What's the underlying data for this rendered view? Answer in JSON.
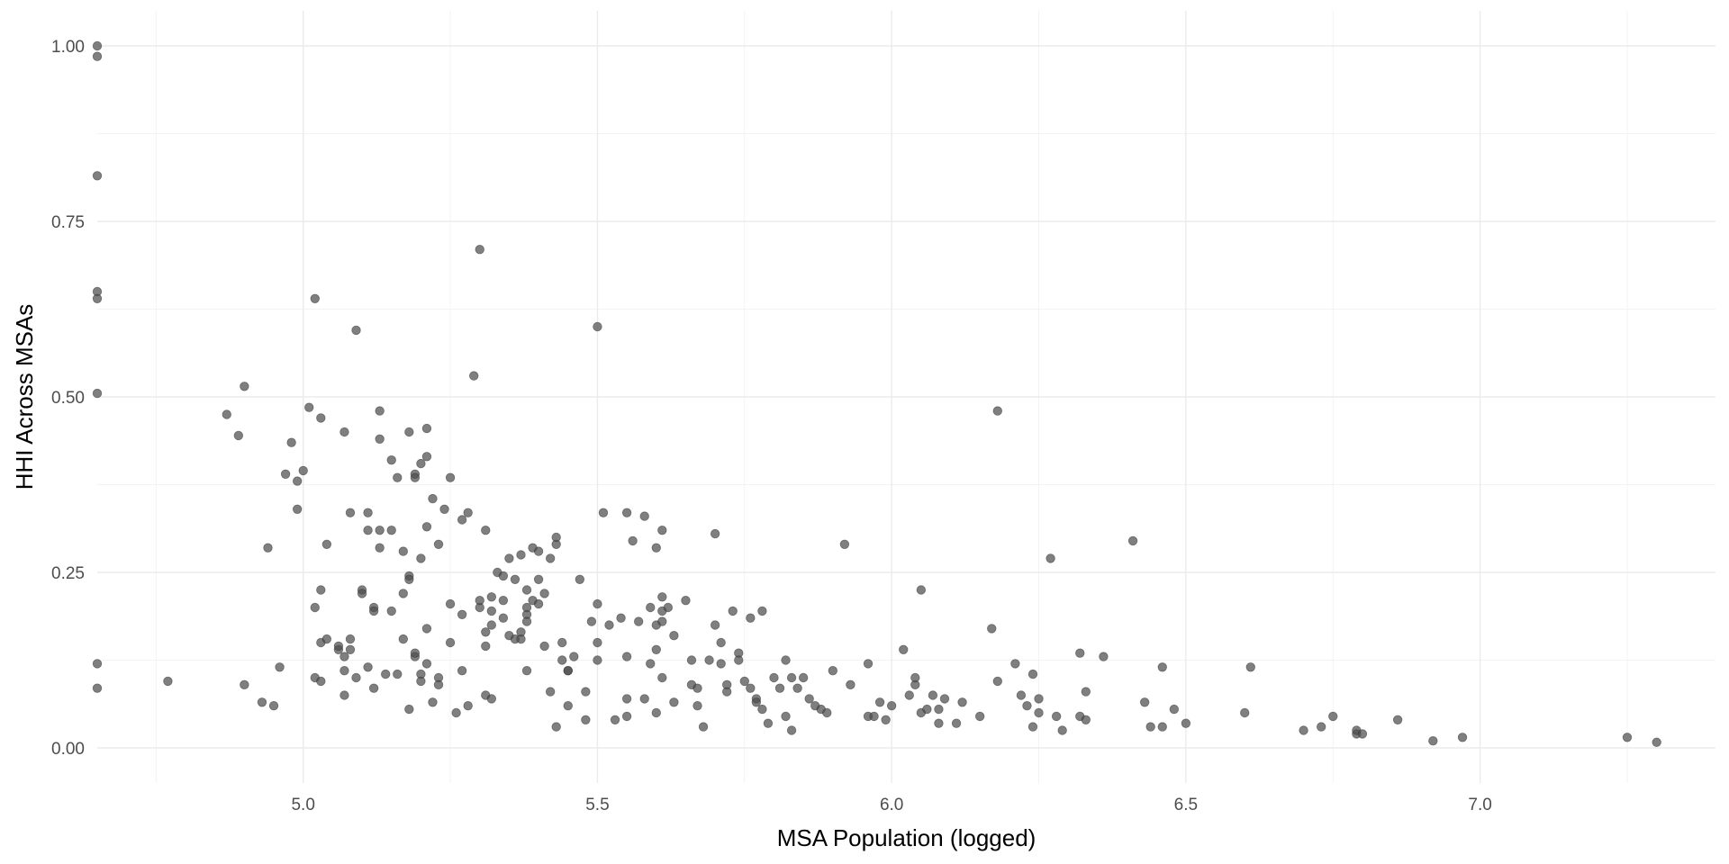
{
  "colors": {
    "background": "#ffffff",
    "grid": "#ebebeb",
    "point": "#4d4d4d",
    "tick_text": "#4d4d4d",
    "title_text": "#000000"
  },
  "chart_data": {
    "type": "scatter",
    "title": "",
    "xlabel": "MSA Population (logged)",
    "ylabel": "HHI Across MSAs",
    "xlim": [
      4.65,
      7.4
    ],
    "ylim": [
      -0.05,
      1.05
    ],
    "x_ticks": [
      5.0,
      5.5,
      6.0,
      6.5,
      7.0
    ],
    "x_tick_labels": [
      "5.0",
      "5.5",
      "6.0",
      "6.5",
      "7.0"
    ],
    "y_ticks": [
      0.0,
      0.25,
      0.5,
      0.75,
      1.0
    ],
    "y_tick_labels": [
      "0.00",
      "0.25",
      "0.50",
      "0.75",
      "1.00"
    ],
    "grid": true,
    "legend": "none",
    "points": [
      [
        4.65,
        1.0
      ],
      [
        4.65,
        0.985
      ],
      [
        4.65,
        0.815
      ],
      [
        4.65,
        0.65
      ],
      [
        4.65,
        0.64
      ],
      [
        4.65,
        0.505
      ],
      [
        4.65,
        0.12
      ],
      [
        4.65,
        0.085
      ],
      [
        4.77,
        0.095
      ],
      [
        4.87,
        0.475
      ],
      [
        4.89,
        0.445
      ],
      [
        4.9,
        0.515
      ],
      [
        4.9,
        0.09
      ],
      [
        4.93,
        0.065
      ],
      [
        4.94,
        0.285
      ],
      [
        4.95,
        0.06
      ],
      [
        4.96,
        0.115
      ],
      [
        4.97,
        0.39
      ],
      [
        4.98,
        0.435
      ],
      [
        4.99,
        0.38
      ],
      [
        4.99,
        0.34
      ],
      [
        5.0,
        0.395
      ],
      [
        5.01,
        0.485
      ],
      [
        5.02,
        0.64
      ],
      [
        5.02,
        0.2
      ],
      [
        5.02,
        0.1
      ],
      [
        5.03,
        0.47
      ],
      [
        5.03,
        0.095
      ],
      [
        5.03,
        0.225
      ],
      [
        5.03,
        0.15
      ],
      [
        5.04,
        0.155
      ],
      [
        5.04,
        0.29
      ],
      [
        5.06,
        0.14
      ],
      [
        5.06,
        0.145
      ],
      [
        5.07,
        0.45
      ],
      [
        5.07,
        0.13
      ],
      [
        5.07,
        0.11
      ],
      [
        5.07,
        0.075
      ],
      [
        5.08,
        0.335
      ],
      [
        5.08,
        0.155
      ],
      [
        5.08,
        0.14
      ],
      [
        5.09,
        0.595
      ],
      [
        5.09,
        0.1
      ],
      [
        5.1,
        0.225
      ],
      [
        5.1,
        0.22
      ],
      [
        5.11,
        0.31
      ],
      [
        5.11,
        0.115
      ],
      [
        5.11,
        0.335
      ],
      [
        5.12,
        0.2
      ],
      [
        5.12,
        0.195
      ],
      [
        5.12,
        0.085
      ],
      [
        5.13,
        0.48
      ],
      [
        5.13,
        0.44
      ],
      [
        5.13,
        0.31
      ],
      [
        5.13,
        0.285
      ],
      [
        5.14,
        0.105
      ],
      [
        5.15,
        0.41
      ],
      [
        5.15,
        0.195
      ],
      [
        5.15,
        0.31
      ],
      [
        5.16,
        0.385
      ],
      [
        5.16,
        0.105
      ],
      [
        5.17,
        0.28
      ],
      [
        5.17,
        0.22
      ],
      [
        5.17,
        0.155
      ],
      [
        5.18,
        0.45
      ],
      [
        5.18,
        0.245
      ],
      [
        5.18,
        0.24
      ],
      [
        5.18,
        0.055
      ],
      [
        5.19,
        0.39
      ],
      [
        5.19,
        0.385
      ],
      [
        5.19,
        0.13
      ],
      [
        5.19,
        0.135
      ],
      [
        5.2,
        0.405
      ],
      [
        5.2,
        0.27
      ],
      [
        5.2,
        0.105
      ],
      [
        5.2,
        0.095
      ],
      [
        5.21,
        0.455
      ],
      [
        5.21,
        0.415
      ],
      [
        5.21,
        0.315
      ],
      [
        5.21,
        0.17
      ],
      [
        5.21,
        0.12
      ],
      [
        5.22,
        0.355
      ],
      [
        5.22,
        0.065
      ],
      [
        5.23,
        0.29
      ],
      [
        5.23,
        0.1
      ],
      [
        5.23,
        0.09
      ],
      [
        5.24,
        0.34
      ],
      [
        5.25,
        0.385
      ],
      [
        5.25,
        0.205
      ],
      [
        5.25,
        0.15
      ],
      [
        5.26,
        0.05
      ],
      [
        5.27,
        0.11
      ],
      [
        5.27,
        0.19
      ],
      [
        5.27,
        0.325
      ],
      [
        5.28,
        0.335
      ],
      [
        5.28,
        0.06
      ],
      [
        5.29,
        0.53
      ],
      [
        5.3,
        0.71
      ],
      [
        5.3,
        0.2
      ],
      [
        5.3,
        0.21
      ],
      [
        5.31,
        0.31
      ],
      [
        5.31,
        0.145
      ],
      [
        5.31,
        0.165
      ],
      [
        5.31,
        0.075
      ],
      [
        5.32,
        0.215
      ],
      [
        5.32,
        0.195
      ],
      [
        5.32,
        0.175
      ],
      [
        5.32,
        0.07
      ],
      [
        5.33,
        0.25
      ],
      [
        5.34,
        0.245
      ],
      [
        5.34,
        0.185
      ],
      [
        5.34,
        0.21
      ],
      [
        5.35,
        0.27
      ],
      [
        5.35,
        0.16
      ],
      [
        5.36,
        0.24
      ],
      [
        5.36,
        0.155
      ],
      [
        5.37,
        0.275
      ],
      [
        5.37,
        0.155
      ],
      [
        5.37,
        0.165
      ],
      [
        5.38,
        0.225
      ],
      [
        5.38,
        0.19
      ],
      [
        5.38,
        0.2
      ],
      [
        5.38,
        0.18
      ],
      [
        5.38,
        0.11
      ],
      [
        5.39,
        0.285
      ],
      [
        5.39,
        0.21
      ],
      [
        5.4,
        0.28
      ],
      [
        5.4,
        0.24
      ],
      [
        5.4,
        0.205
      ],
      [
        5.41,
        0.22
      ],
      [
        5.41,
        0.145
      ],
      [
        5.42,
        0.27
      ],
      [
        5.42,
        0.08
      ],
      [
        5.43,
        0.29
      ],
      [
        5.43,
        0.3
      ],
      [
        5.43,
        0.03
      ],
      [
        5.44,
        0.15
      ],
      [
        5.44,
        0.125
      ],
      [
        5.45,
        0.11
      ],
      [
        5.45,
        0.11
      ],
      [
        5.45,
        0.06
      ],
      [
        5.46,
        0.13
      ],
      [
        5.47,
        0.24
      ],
      [
        5.48,
        0.08
      ],
      [
        5.48,
        0.04
      ],
      [
        5.49,
        0.18
      ],
      [
        5.5,
        0.6
      ],
      [
        5.5,
        0.205
      ],
      [
        5.5,
        0.15
      ],
      [
        5.5,
        0.125
      ],
      [
        5.51,
        0.335
      ],
      [
        5.52,
        0.175
      ],
      [
        5.53,
        0.04
      ],
      [
        5.54,
        0.185
      ],
      [
        5.55,
        0.335
      ],
      [
        5.55,
        0.13
      ],
      [
        5.55,
        0.07
      ],
      [
        5.55,
        0.045
      ],
      [
        5.56,
        0.295
      ],
      [
        5.57,
        0.18
      ],
      [
        5.58,
        0.33
      ],
      [
        5.58,
        0.07
      ],
      [
        5.59,
        0.2
      ],
      [
        5.59,
        0.12
      ],
      [
        5.6,
        0.285
      ],
      [
        5.6,
        0.175
      ],
      [
        5.6,
        0.14
      ],
      [
        5.6,
        0.05
      ],
      [
        5.61,
        0.31
      ],
      [
        5.61,
        0.195
      ],
      [
        5.61,
        0.18
      ],
      [
        5.61,
        0.215
      ],
      [
        5.61,
        0.1
      ],
      [
        5.62,
        0.2
      ],
      [
        5.63,
        0.16
      ],
      [
        5.63,
        0.065
      ],
      [
        5.65,
        0.21
      ],
      [
        5.66,
        0.125
      ],
      [
        5.66,
        0.09
      ],
      [
        5.67,
        0.085
      ],
      [
        5.67,
        0.06
      ],
      [
        5.68,
        0.03
      ],
      [
        5.69,
        0.125
      ],
      [
        5.7,
        0.305
      ],
      [
        5.7,
        0.175
      ],
      [
        5.71,
        0.15
      ],
      [
        5.71,
        0.12
      ],
      [
        5.72,
        0.08
      ],
      [
        5.72,
        0.09
      ],
      [
        5.73,
        0.195
      ],
      [
        5.74,
        0.135
      ],
      [
        5.74,
        0.125
      ],
      [
        5.75,
        0.095
      ],
      [
        5.76,
        0.085
      ],
      [
        5.76,
        0.185
      ],
      [
        5.77,
        0.07
      ],
      [
        5.77,
        0.065
      ],
      [
        5.78,
        0.055
      ],
      [
        5.78,
        0.195
      ],
      [
        5.79,
        0.035
      ],
      [
        5.8,
        0.1
      ],
      [
        5.81,
        0.085
      ],
      [
        5.82,
        0.125
      ],
      [
        5.82,
        0.045
      ],
      [
        5.83,
        0.1
      ],
      [
        5.83,
        0.025
      ],
      [
        5.84,
        0.085
      ],
      [
        5.85,
        0.1
      ],
      [
        5.86,
        0.07
      ],
      [
        5.87,
        0.06
      ],
      [
        5.88,
        0.055
      ],
      [
        5.89,
        0.05
      ],
      [
        5.9,
        0.11
      ],
      [
        5.92,
        0.29
      ],
      [
        5.93,
        0.09
      ],
      [
        5.96,
        0.045
      ],
      [
        5.96,
        0.12
      ],
      [
        5.97,
        0.045
      ],
      [
        5.98,
        0.065
      ],
      [
        5.99,
        0.04
      ],
      [
        6.0,
        0.06
      ],
      [
        6.02,
        0.14
      ],
      [
        6.03,
        0.075
      ],
      [
        6.04,
        0.09
      ],
      [
        6.04,
        0.1
      ],
      [
        6.05,
        0.225
      ],
      [
        6.05,
        0.05
      ],
      [
        6.06,
        0.055
      ],
      [
        6.07,
        0.075
      ],
      [
        6.08,
        0.035
      ],
      [
        6.08,
        0.055
      ],
      [
        6.09,
        0.07
      ],
      [
        6.11,
        0.035
      ],
      [
        6.12,
        0.065
      ],
      [
        6.15,
        0.045
      ],
      [
        6.17,
        0.17
      ],
      [
        6.18,
        0.48
      ],
      [
        6.18,
        0.095
      ],
      [
        6.21,
        0.12
      ],
      [
        6.22,
        0.075
      ],
      [
        6.23,
        0.06
      ],
      [
        6.24,
        0.105
      ],
      [
        6.24,
        0.03
      ],
      [
        6.25,
        0.05
      ],
      [
        6.25,
        0.07
      ],
      [
        6.27,
        0.27
      ],
      [
        6.28,
        0.045
      ],
      [
        6.29,
        0.025
      ],
      [
        6.32,
        0.135
      ],
      [
        6.32,
        0.045
      ],
      [
        6.33,
        0.08
      ],
      [
        6.33,
        0.04
      ],
      [
        6.36,
        0.13
      ],
      [
        6.41,
        0.295
      ],
      [
        6.43,
        0.065
      ],
      [
        6.44,
        0.03
      ],
      [
        6.46,
        0.115
      ],
      [
        6.46,
        0.03
      ],
      [
        6.48,
        0.055
      ],
      [
        6.5,
        0.035
      ],
      [
        6.6,
        0.05
      ],
      [
        6.61,
        0.115
      ],
      [
        6.7,
        0.025
      ],
      [
        6.73,
        0.03
      ],
      [
        6.75,
        0.045
      ],
      [
        6.79,
        0.02
      ],
      [
        6.79,
        0.025
      ],
      [
        6.8,
        0.02
      ],
      [
        6.86,
        0.04
      ],
      [
        6.92,
        0.01
      ],
      [
        6.97,
        0.015
      ],
      [
        7.25,
        0.015
      ],
      [
        7.3,
        0.008
      ]
    ]
  }
}
